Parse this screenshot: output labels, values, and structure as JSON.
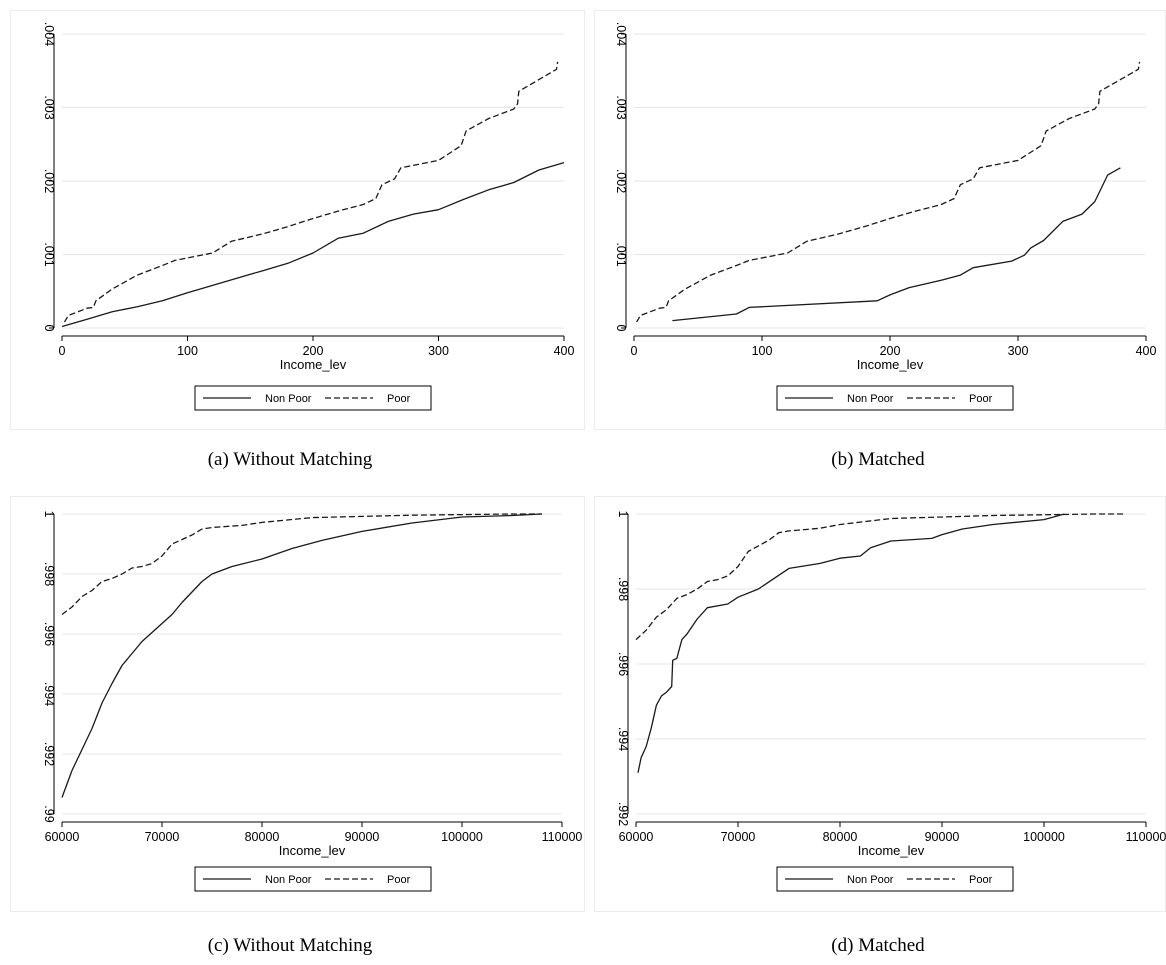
{
  "charts": [
    {
      "caption": "(a) Without Matching",
      "chart_data": {
        "type": "line",
        "xlabel": "Income_lev",
        "ylabel": "",
        "xlim": [
          0,
          400
        ],
        "ylim": [
          0,
          0.004
        ],
        "xticks": [
          0,
          100,
          200,
          300,
          400
        ],
        "xtick_labels": [
          "0",
          "100",
          "200",
          "300",
          "400"
        ],
        "yticks": [
          0,
          0.001,
          0.002,
          0.003,
          0.004
        ],
        "ytick_labels": [
          "0",
          ".001",
          ".002",
          ".003",
          ".004"
        ],
        "grid": true,
        "legend_position": "bottom",
        "series": [
          {
            "name": "Non Poor",
            "style": "solid",
            "x": [
              0,
              20,
              40,
              60,
              80,
              100,
              120,
              140,
              160,
              180,
              200,
              220,
              240,
              260,
              280,
              300,
              320,
              340,
              360,
              380,
              400
            ],
            "y": [
              2e-05,
              0.00012,
              0.00022,
              0.00029,
              0.00037,
              0.00048,
              0.00058,
              0.00068,
              0.00078,
              0.00088,
              0.00102,
              0.00122,
              0.00129,
              0.00145,
              0.00155,
              0.00161,
              0.00175,
              0.00188,
              0.00198,
              0.00215,
              0.00225
            ]
          },
          {
            "name": "Poor",
            "style": "dashed",
            "x": [
              2,
              5,
              20,
              25,
              27,
              40,
              60,
              80,
              90,
              120,
              135,
              160,
              180,
              200,
              220,
              240,
              250,
              255,
              265,
              270,
              300,
              318,
              322,
              340,
              360,
              363,
              364,
              380,
              394,
              395
            ],
            "y": [
              8e-05,
              0.00017,
              0.00027,
              0.00028,
              0.00037,
              0.00053,
              0.00072,
              0.00085,
              0.00092,
              0.00102,
              0.00118,
              0.00128,
              0.00138,
              0.00149,
              0.00159,
              0.00168,
              0.00176,
              0.00195,
              0.00203,
              0.00218,
              0.00228,
              0.00248,
              0.00268,
              0.00285,
              0.00298,
              0.00305,
              0.00322,
              0.00338,
              0.00352,
              0.00362
            ]
          }
        ]
      }
    },
    {
      "caption": "(b) Matched",
      "chart_data": {
        "type": "line",
        "xlabel": "Income_lev",
        "ylabel": "",
        "xlim": [
          0,
          400
        ],
        "ylim": [
          0,
          0.004
        ],
        "xticks": [
          0,
          100,
          200,
          300,
          400
        ],
        "xtick_labels": [
          "0",
          "100",
          "200",
          "300",
          "400"
        ],
        "yticks": [
          0,
          0.001,
          0.002,
          0.003,
          0.004
        ],
        "ytick_labels": [
          "0",
          ".001",
          ".002",
          ".003",
          ".004"
        ],
        "grid": true,
        "legend_position": "bottom",
        "series": [
          {
            "name": "Non Poor",
            "style": "solid",
            "x": [
              30,
              80,
              90,
              190,
              200,
              215,
              240,
              255,
              265,
              295,
              305,
              310,
              320,
              335,
              350,
              360,
              370,
              380
            ],
            "y": [
              0.0001,
              0.00019,
              0.00028,
              0.00037,
              0.00045,
              0.00055,
              0.00065,
              0.00072,
              0.00082,
              0.00091,
              0.00099,
              0.00109,
              0.00119,
              0.00145,
              0.00155,
              0.00172,
              0.00208,
              0.00218
            ]
          },
          {
            "name": "Poor",
            "style": "dashed",
            "x": [
              2,
              5,
              20,
              25,
              27,
              40,
              60,
              80,
              90,
              120,
              135,
              160,
              180,
              200,
              220,
              240,
              250,
              255,
              265,
              270,
              300,
              318,
              322,
              340,
              360,
              363,
              364,
              380,
              394,
              395
            ],
            "y": [
              8e-05,
              0.00017,
              0.00027,
              0.00028,
              0.00037,
              0.00053,
              0.00072,
              0.00085,
              0.00092,
              0.00102,
              0.00118,
              0.00128,
              0.00138,
              0.00149,
              0.00159,
              0.00168,
              0.00176,
              0.00195,
              0.00203,
              0.00218,
              0.00228,
              0.00248,
              0.00268,
              0.00285,
              0.00298,
              0.00305,
              0.00322,
              0.00338,
              0.00352,
              0.00362
            ]
          }
        ]
      }
    },
    {
      "caption": "(c) Without Matching",
      "chart_data": {
        "type": "line",
        "xlabel": "Income_lev",
        "ylabel": "",
        "xlim": [
          60000,
          110000
        ],
        "ylim": [
          0.99,
          1
        ],
        "xticks": [
          60000,
          70000,
          80000,
          90000,
          100000,
          110000
        ],
        "xtick_labels": [
          "60000",
          "70000",
          "80000",
          "90000",
          "100000",
          "110000"
        ],
        "yticks": [
          0.99,
          0.992,
          0.994,
          0.996,
          0.998,
          1
        ],
        "ytick_labels": [
          ".99",
          ".992",
          ".994",
          ".996",
          ".998",
          "1"
        ],
        "grid": true,
        "legend_position": "bottom",
        "series": [
          {
            "name": "Non Poor",
            "style": "solid",
            "x": [
              60000,
              61000,
              62000,
              63000,
              64000,
              65000,
              66000,
              67000,
              68000,
              69000,
              70000,
              71000,
              72000,
              73000,
              74000,
              75000,
              77000,
              80000,
              83000,
              86000,
              90000,
              95000,
              100000,
              105000,
              108000
            ],
            "y": [
              0.99055,
              0.99145,
              0.99215,
              0.99285,
              0.9937,
              0.99435,
              0.99495,
              0.99535,
              0.99575,
              0.99605,
              0.99635,
              0.99665,
              0.99705,
              0.9974,
              0.99775,
              0.998,
              0.99825,
              0.9985,
              0.99885,
              0.99912,
              0.99942,
              0.9997,
              0.9999,
              0.99995,
              1
            ]
          },
          {
            "name": "Poor",
            "style": "dashed",
            "x": [
              60000,
              61000,
              62000,
              63000,
              64000,
              65000,
              66000,
              67000,
              68000,
              69000,
              70000,
              71000,
              72000,
              73000,
              74000,
              75000,
              78000,
              80000,
              85000,
              90000,
              95000,
              100000,
              105000,
              108000
            ],
            "y": [
              0.99665,
              0.9969,
              0.99725,
              0.99745,
              0.99775,
              0.99785,
              0.998,
              0.9982,
              0.99825,
              0.99835,
              0.9986,
              0.999,
              0.99915,
              0.9993,
              0.9995,
              0.99955,
              0.99962,
              0.99972,
              0.99988,
              0.99992,
              0.99996,
              0.99998,
              1,
              1
            ]
          }
        ]
      }
    },
    {
      "caption": "(d) Matched",
      "chart_data": {
        "type": "line",
        "xlabel": "Income_lev",
        "ylabel": "",
        "xlim": [
          60000,
          110000
        ],
        "ylim": [
          0.992,
          1
        ],
        "xticks": [
          60000,
          70000,
          80000,
          90000,
          100000,
          110000
        ],
        "xtick_labels": [
          "60000",
          "70000",
          "80000",
          "90000",
          "100000",
          "110000"
        ],
        "yticks": [
          0.992,
          0.994,
          0.996,
          0.998,
          1
        ],
        "ytick_labels": [
          ".992",
          ".994",
          ".996",
          ".998",
          "1"
        ],
        "grid": true,
        "legend_position": "bottom",
        "series": [
          {
            "name": "Non Poor",
            "style": "solid",
            "x": [
              60200,
              60500,
              61000,
              61500,
              62000,
              62500,
              63000,
              63500,
              63600,
              64000,
              64500,
              65000,
              66000,
              67000,
              69000,
              70000,
              72000,
              75000,
              78000,
              80000,
              82000,
              83000,
              85000,
              89000,
              90000,
              92000,
              95000,
              100000,
              102000
            ],
            "y": [
              0.9931,
              0.9935,
              0.9938,
              0.9943,
              0.9949,
              0.99515,
              0.99525,
              0.9954,
              0.9961,
              0.99615,
              0.99665,
              0.9968,
              0.9972,
              0.9975,
              0.9976,
              0.99778,
              0.998,
              0.99855,
              0.99868,
              0.99882,
              0.99888,
              0.9991,
              0.99928,
              0.99935,
              0.99945,
              0.9996,
              0.99972,
              0.99985,
              1
            ]
          },
          {
            "name": "Poor",
            "style": "dashed",
            "x": [
              60000,
              61000,
              62000,
              63000,
              64000,
              65000,
              66000,
              67000,
              68000,
              69000,
              70000,
              71000,
              72000,
              73000,
              74000,
              75000,
              78000,
              80000,
              85000,
              90000,
              95000,
              100000,
              105000,
              108000
            ],
            "y": [
              0.99665,
              0.9969,
              0.99725,
              0.99745,
              0.99775,
              0.99785,
              0.998,
              0.9982,
              0.99825,
              0.99835,
              0.9986,
              0.999,
              0.99915,
              0.9993,
              0.9995,
              0.99955,
              0.99962,
              0.99972,
              0.99988,
              0.99992,
              0.99996,
              0.99998,
              1,
              1
            ]
          }
        ]
      }
    }
  ]
}
